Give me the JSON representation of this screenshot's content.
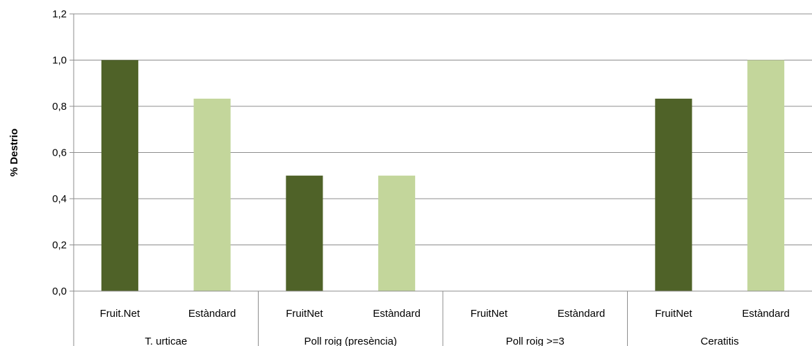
{
  "chart_data": {
    "type": "bar",
    "ylabel": "% Destrio",
    "ylim": [
      0,
      1.2
    ],
    "yticks": [
      "0,0",
      "0,2",
      "0,4",
      "0,6",
      "0,8",
      "1,0",
      "1,2"
    ],
    "grid": true,
    "groups": [
      {
        "name": "T. urticae",
        "bars": [
          {
            "label": "Fruit.Net",
            "value": 1.0,
            "color": "#4f6228"
          },
          {
            "label": "Estàndard",
            "value": 0.833,
            "color": "#c3d69b"
          }
        ]
      },
      {
        "name": "Poll roig (presència)",
        "bars": [
          {
            "label": "FruitNet",
            "value": 0.5,
            "color": "#4f6228"
          },
          {
            "label": "Estàndard",
            "value": 0.5,
            "color": "#c3d69b"
          }
        ]
      },
      {
        "name": "Poll roig >=3",
        "bars": [
          {
            "label": "FruitNet",
            "value": 0,
            "color": "#4f6228"
          },
          {
            "label": "Estàndard",
            "value": 0,
            "color": "#c3d69b"
          }
        ]
      },
      {
        "name": "Ceratitis",
        "bars": [
          {
            "label": "FruitNet",
            "value": 0.833,
            "color": "#4f6228"
          },
          {
            "label": "Estàndard",
            "value": 1.0,
            "color": "#c3d69b"
          }
        ]
      }
    ]
  }
}
